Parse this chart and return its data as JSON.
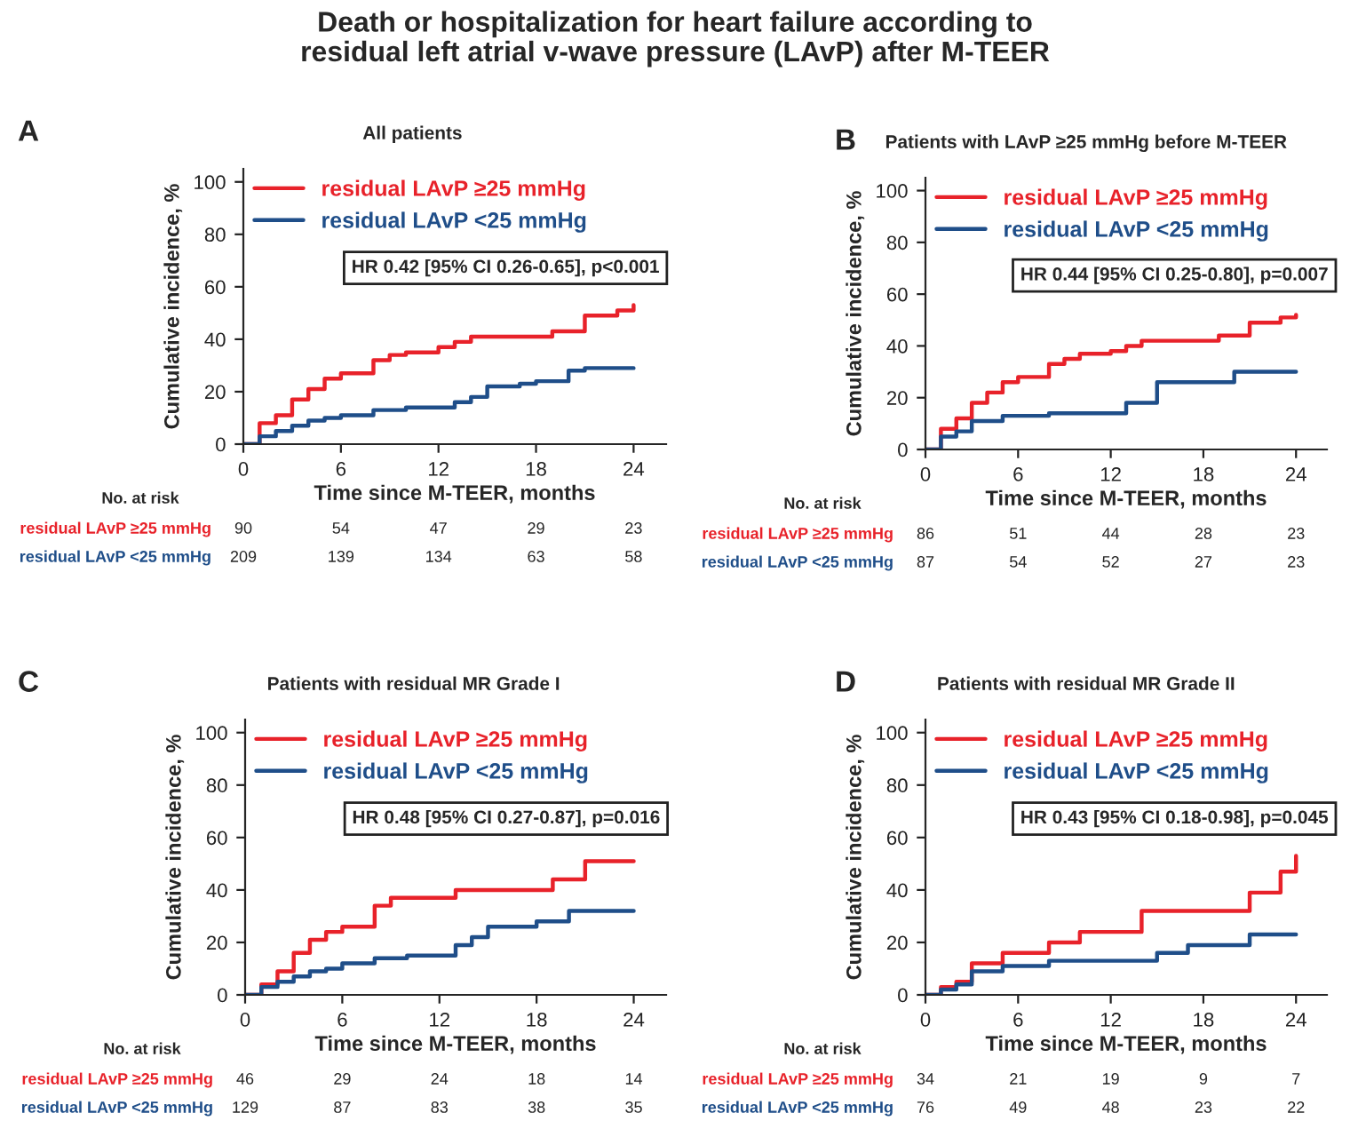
{
  "chart_data": [
    {
      "type": "step",
      "title": "All patients",
      "xlabel": "Time since M-TEER, months",
      "ylabel": "Cumulative incidence, %",
      "xlim": [
        0,
        26
      ],
      "ylim": [
        0,
        105
      ],
      "xticks": [
        0,
        6,
        12,
        18,
        24
      ],
      "yticks": [
        0,
        20,
        40,
        60,
        80,
        100
      ],
      "legend": "top left",
      "grid": false,
      "series": [
        {
          "name": "residual LAvP ≥25 mmHg",
          "color": "#e8222a",
          "x": [
            0,
            1,
            2,
            3,
            4,
            5,
            6,
            8,
            9,
            10,
            12,
            13,
            14,
            19,
            21,
            23,
            24
          ],
          "values": [
            0,
            8,
            11,
            17,
            21,
            25,
            27,
            32,
            34,
            35,
            37,
            39,
            41,
            43,
            49,
            51,
            53
          ]
        },
        {
          "name": "residual LAvP <25 mmHg",
          "color": "#1f4e89",
          "x": [
            0,
            1,
            2,
            3,
            4,
            5,
            6,
            8,
            10,
            13,
            14,
            15,
            17,
            18,
            20,
            21,
            24
          ],
          "values": [
            0,
            3,
            5,
            7,
            9,
            10,
            11,
            13,
            14,
            16,
            18,
            22,
            23,
            24,
            28,
            29,
            29
          ]
        }
      ],
      "annotations": [
        "A",
        "HR 0.42 [95% CI 0.26-0.65], p<0.001",
        "No. at risk",
        "residual LAvP ≥25 mmHg",
        "90",
        "54",
        "47",
        "29",
        "23",
        "residual LAvP <25 mmHg",
        "209",
        "139",
        "134",
        "63",
        "58",
        "Death or hospitalization for heart failure according to\nresidual left atrial v-wave pressure (LAvP) after M-TEER"
      ]
    },
    {
      "type": "step",
      "title": "Patients with LAvP ≥25 mmHg before M-TEER",
      "xlabel": "Time since M-TEER, months",
      "ylabel": "Cumulative incidence, %",
      "xlim": [
        0,
        26
      ],
      "ylim": [
        0,
        105
      ],
      "xticks": [
        0,
        6,
        12,
        18,
        24
      ],
      "yticks": [
        0,
        20,
        40,
        60,
        80,
        100
      ],
      "legend": "top left",
      "grid": false,
      "series": [
        {
          "name": "residual LAvP ≥25 mmHg",
          "color": "#e8222a",
          "x": [
            0,
            1,
            2,
            3,
            4,
            5,
            6,
            8,
            9,
            10,
            12,
            13,
            14,
            19,
            21,
            23,
            24
          ],
          "values": [
            0,
            8,
            12,
            18,
            22,
            26,
            28,
            33,
            35,
            37,
            38,
            40,
            42,
            44,
            49,
            51,
            52
          ]
        },
        {
          "name": "residual LAvP <25 mmHg",
          "color": "#1f4e89",
          "x": [
            0,
            1,
            2,
            3,
            5,
            8,
            13,
            15,
            20,
            24
          ],
          "values": [
            0,
            5,
            7,
            11,
            13,
            14,
            18,
            26,
            30,
            30
          ]
        }
      ],
      "annotations": [
        "B",
        "HR 0.44 [95% CI 0.25-0.80], p=0.007",
        "No. at risk",
        "residual LAvP ≥25 mmHg",
        "86",
        "51",
        "44",
        "28",
        "23",
        "residual LAvP <25 mmHg",
        "87",
        "54",
        "52",
        "27",
        "23"
      ]
    },
    {
      "type": "step",
      "title": "Patients with residual MR Grade I",
      "xlabel": "Time since M-TEER, months",
      "ylabel": "Cumulative incidence, %",
      "xlim": [
        0,
        26
      ],
      "ylim": [
        0,
        105
      ],
      "xticks": [
        0,
        6,
        12,
        18,
        24
      ],
      "yticks": [
        0,
        20,
        40,
        60,
        80,
        100
      ],
      "legend": "top left",
      "grid": false,
      "series": [
        {
          "name": "residual LAvP ≥25 mmHg",
          "color": "#e8222a",
          "x": [
            0,
            1,
            2,
            3,
            4,
            5,
            6,
            8,
            9,
            13,
            19,
            21,
            24
          ],
          "values": [
            0,
            4,
            9,
            16,
            21,
            24,
            26,
            34,
            37,
            40,
            44,
            51,
            51
          ]
        },
        {
          "name": "residual LAvP <25 mmHg",
          "color": "#1f4e89",
          "x": [
            0,
            1,
            2,
            3,
            4,
            5,
            6,
            8,
            10,
            13,
            14,
            15,
            18,
            20,
            24
          ],
          "values": [
            0,
            3,
            5,
            7,
            9,
            10,
            12,
            14,
            15,
            19,
            22,
            26,
            28,
            32,
            32
          ]
        }
      ],
      "annotations": [
        "C",
        "HR 0.48 [95% CI 0.27-0.87], p=0.016",
        "No. at risk",
        "residual LAvP ≥25 mmHg",
        "46",
        "29",
        "24",
        "18",
        "14",
        "residual LAvP <25 mmHg",
        "129",
        "87",
        "83",
        "38",
        "35"
      ]
    },
    {
      "type": "step",
      "title": "Patients with residual MR Grade II",
      "xlabel": "Time since M-TEER, months",
      "ylabel": "Cumulative incidence, %",
      "xlim": [
        0,
        26
      ],
      "ylim": [
        0,
        105
      ],
      "xticks": [
        0,
        6,
        12,
        18,
        24
      ],
      "yticks": [
        0,
        20,
        40,
        60,
        80,
        100
      ],
      "legend": "top left",
      "grid": false,
      "series": [
        {
          "name": "residual LAvP ≥25 mmHg",
          "color": "#e8222a",
          "x": [
            0,
            1,
            2,
            3,
            5,
            8,
            10,
            14,
            21,
            23,
            24
          ],
          "values": [
            0,
            3,
            5,
            12,
            16,
            20,
            24,
            32,
            39,
            47,
            53
          ]
        },
        {
          "name": "residual LAvP <25 mmHg",
          "color": "#1f4e89",
          "x": [
            0,
            1,
            2,
            3,
            5,
            8,
            15,
            17,
            21,
            24
          ],
          "values": [
            0,
            2,
            4,
            9,
            11,
            13,
            16,
            19,
            23,
            23
          ]
        }
      ],
      "annotations": [
        "D",
        "HR 0.43 [95% CI 0.18-0.98], p=0.045",
        "No. at risk",
        "residual LAvP ≥25 mmHg",
        "34",
        "21",
        "19",
        "9",
        "7",
        "residual LAvP <25 mmHg",
        "76",
        "49",
        "48",
        "23",
        "22"
      ]
    }
  ]
}
